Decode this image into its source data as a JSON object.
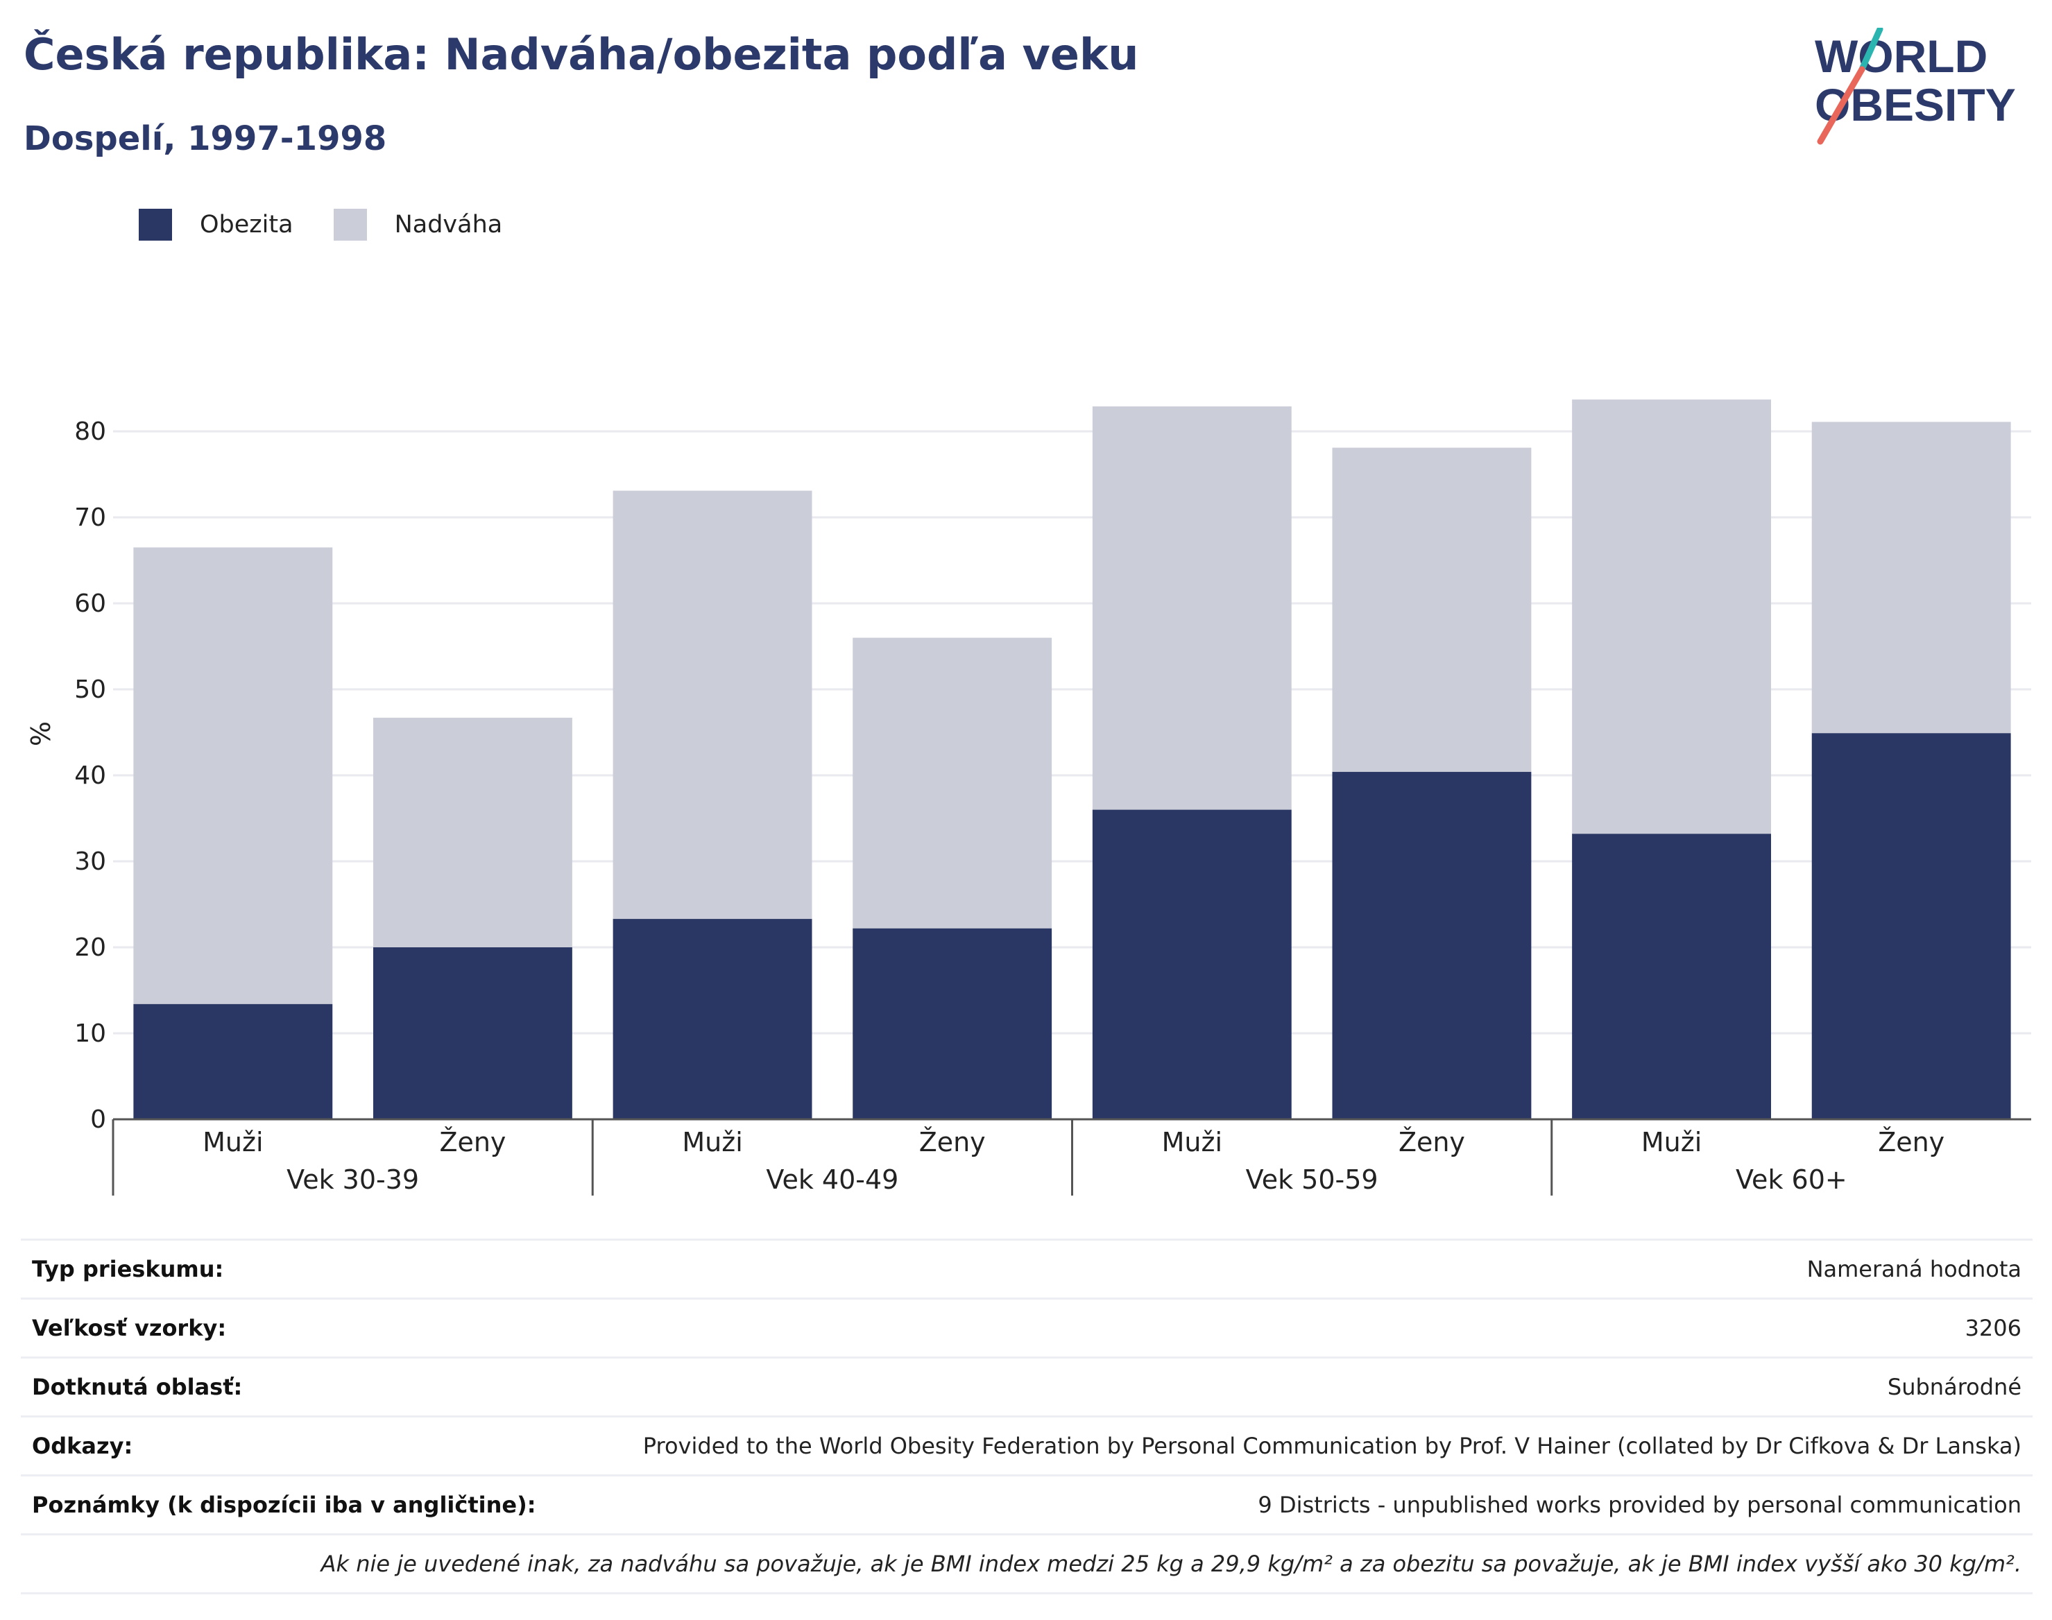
{
  "title": "Česká republika: Nadváha/obezita podľa veku",
  "subtitle": "Dospelí, 1997-1998",
  "logo": {
    "line1": "WORLD",
    "line2": "OBESITY"
  },
  "colors": {
    "obezita": "#2a3663",
    "nadvaha": "#cbcdd8",
    "text": "#2c3a6b",
    "accent_red": "#e8665a",
    "accent_teal": "#2bb5b0"
  },
  "legend": [
    {
      "label": "Obezita",
      "color": "#2a3663"
    },
    {
      "label": "Nadváha",
      "color": "#cbcdd8"
    }
  ],
  "chart_data": {
    "type": "bar",
    "stacked": true,
    "ylabel": "%",
    "ylim": [
      0,
      85
    ],
    "yticks": [
      0,
      10,
      20,
      30,
      40,
      50,
      60,
      70,
      80
    ],
    "grid": true,
    "legend_position": "top-left",
    "groups": [
      "Vek 30-39",
      "Vek 40-49",
      "Vek 50-59",
      "Vek 60+"
    ],
    "categories": [
      "Muži",
      "Ženy",
      "Muži",
      "Ženy",
      "Muži",
      "Ženy",
      "Muži",
      "Ženy"
    ],
    "series": [
      {
        "name": "Obezita",
        "values": [
          13.4,
          20.0,
          23.3,
          22.2,
          36.0,
          40.4,
          33.2,
          44.9
        ]
      },
      {
        "name": "Nadváha",
        "values": [
          53.1,
          26.7,
          49.8,
          33.8,
          46.9,
          37.7,
          50.5,
          36.2
        ]
      }
    ]
  },
  "info": [
    {
      "key": "Typ prieskumu:",
      "value": "Nameraná hodnota"
    },
    {
      "key": "Veľkosť vzorky:",
      "value": "3206"
    },
    {
      "key": "Dotknutá oblasť:",
      "value": "Subnárodné"
    },
    {
      "key": "Odkazy:",
      "value": "Provided to the World Obesity Federation by Personal Communication by Prof. V Hainer (collated by Dr Cifkova & Dr Lanska)"
    },
    {
      "key": "Poznámky (k dispozícii iba v angličtine):",
      "value": "9 Districts - unpublished works provided by personal communication"
    }
  ],
  "footnote": "Ak nie je uvedené inak, za nadváhu sa považuje, ak je BMI index medzi 25 kg a 29,9 kg/m² a za obezitu sa považuje, ak je BMI index vyšší ako 30 kg/m²."
}
